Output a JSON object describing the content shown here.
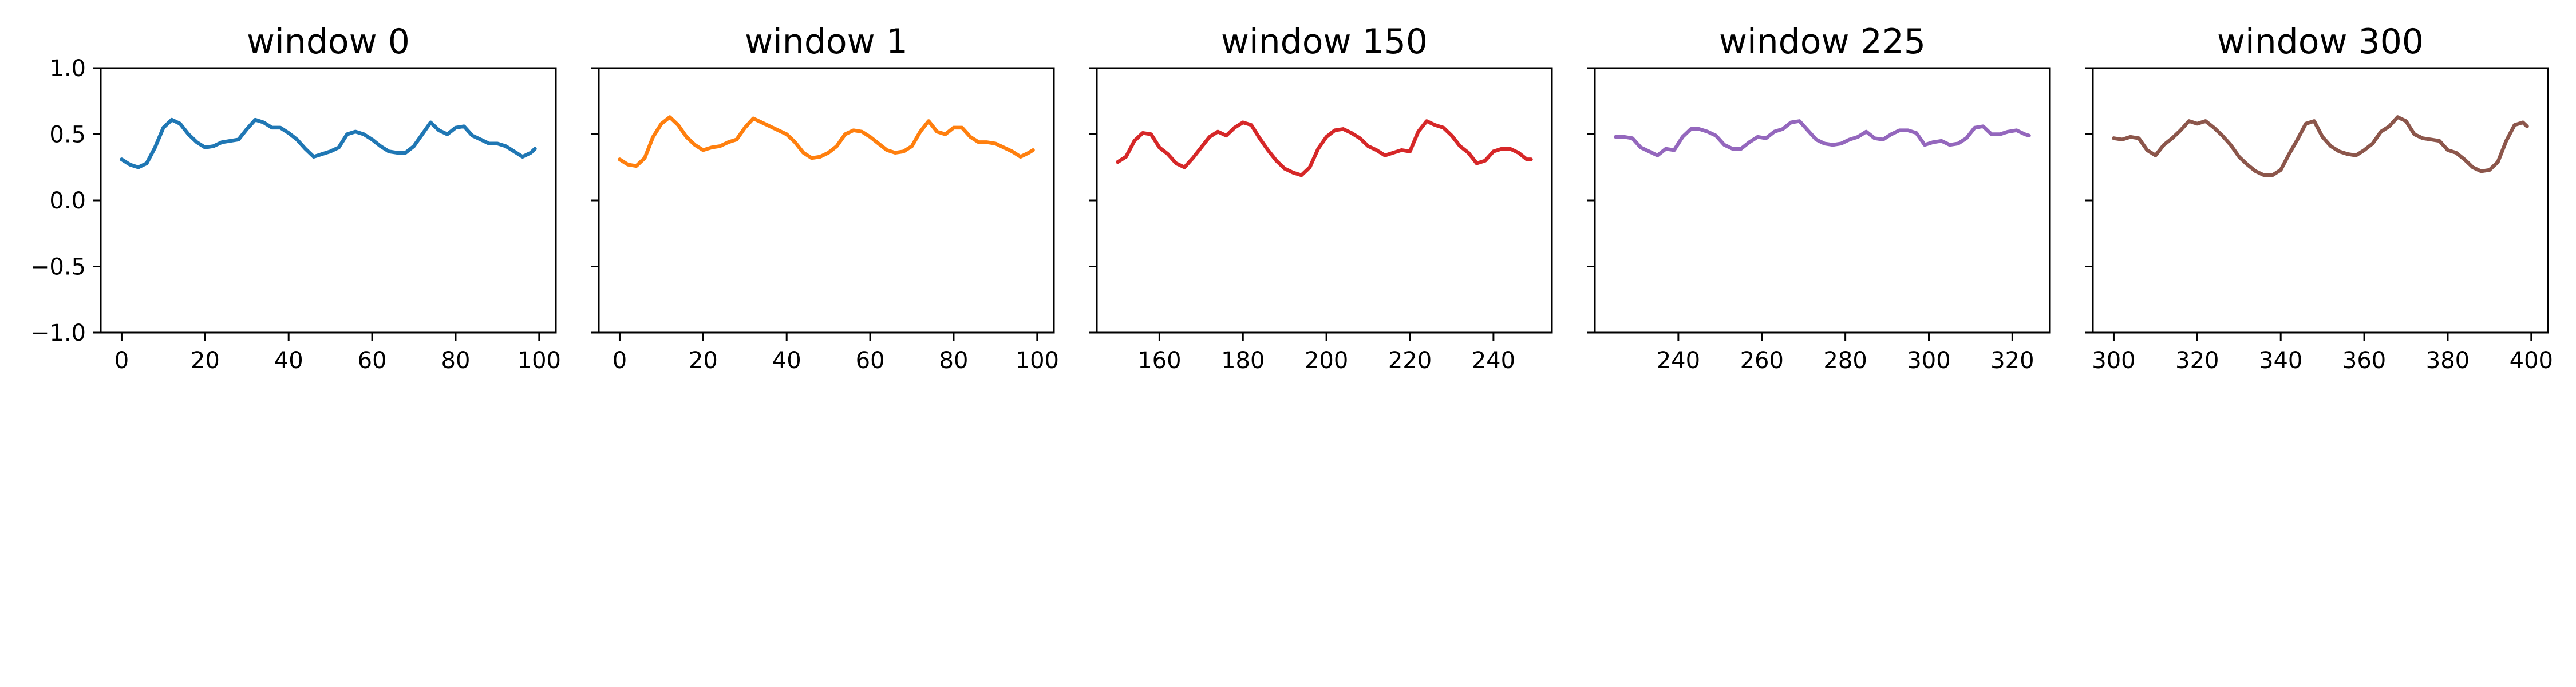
{
  "figure": {
    "background": "#ffffff",
    "tick_color": "#000000"
  },
  "chart_data": [
    {
      "type": "line",
      "title": "window 0",
      "color": "#1f77b4",
      "xlim": [
        -5,
        104
      ],
      "ylim": [
        -1.0,
        1.0
      ],
      "xticks": [
        0,
        20,
        40,
        60,
        80,
        100
      ],
      "yticks": [
        -1.0,
        -0.5,
        0.0,
        0.5,
        1.0
      ],
      "ytick_labels": [
        "−1.0",
        "−0.5",
        "0.0",
        "0.5",
        "1.0"
      ],
      "show_ytick_labels": true,
      "series": [
        {
          "x": [
            0,
            2,
            4,
            6,
            8,
            10,
            12,
            14,
            16,
            18,
            20,
            22,
            24,
            26,
            28,
            30,
            32,
            34,
            36,
            38,
            40,
            42,
            44,
            46,
            48,
            50,
            52,
            54,
            56,
            58,
            60,
            62,
            64,
            66,
            68,
            70,
            72,
            74,
            76,
            78,
            80,
            82,
            84,
            86,
            88,
            90,
            92,
            94,
            96,
            98,
            99
          ],
          "values": [
            0.31,
            0.27,
            0.25,
            0.28,
            0.4,
            0.55,
            0.61,
            0.58,
            0.5,
            0.44,
            0.4,
            0.41,
            0.44,
            0.45,
            0.46,
            0.54,
            0.61,
            0.59,
            0.55,
            0.55,
            0.51,
            0.46,
            0.39,
            0.33,
            0.35,
            0.37,
            0.4,
            0.5,
            0.52,
            0.5,
            0.46,
            0.41,
            0.37,
            0.36,
            0.36,
            0.41,
            0.5,
            0.59,
            0.53,
            0.5,
            0.55,
            0.56,
            0.49,
            0.46,
            0.43,
            0.43,
            0.41,
            0.37,
            0.33,
            0.36,
            0.39
          ]
        }
      ]
    },
    {
      "type": "line",
      "title": "window 1",
      "color": "#ff7f0e",
      "xlim": [
        -5,
        104
      ],
      "ylim": [
        -1.0,
        1.0
      ],
      "xticks": [
        0,
        20,
        40,
        60,
        80,
        100
      ],
      "yticks": [
        -1.0,
        -0.5,
        0.0,
        0.5,
        1.0
      ],
      "ytick_labels": [
        "−1.0",
        "−0.5",
        "0.0",
        "0.5",
        "1.0"
      ],
      "show_ytick_labels": false,
      "series": [
        {
          "x": [
            0,
            2,
            4,
            6,
            8,
            10,
            12,
            14,
            16,
            18,
            20,
            22,
            24,
            26,
            28,
            30,
            32,
            34,
            36,
            38,
            40,
            42,
            44,
            46,
            48,
            50,
            52,
            54,
            56,
            58,
            60,
            62,
            64,
            66,
            68,
            70,
            72,
            74,
            76,
            78,
            80,
            82,
            84,
            86,
            88,
            90,
            92,
            94,
            96,
            98,
            99
          ],
          "values": [
            0.31,
            0.27,
            0.26,
            0.32,
            0.48,
            0.58,
            0.63,
            0.57,
            0.48,
            0.42,
            0.38,
            0.4,
            0.41,
            0.44,
            0.46,
            0.55,
            0.62,
            0.59,
            0.56,
            0.53,
            0.5,
            0.44,
            0.36,
            0.32,
            0.33,
            0.36,
            0.41,
            0.5,
            0.53,
            0.52,
            0.48,
            0.43,
            0.38,
            0.36,
            0.37,
            0.41,
            0.52,
            0.6,
            0.52,
            0.5,
            0.55,
            0.55,
            0.48,
            0.44,
            0.44,
            0.43,
            0.4,
            0.37,
            0.33,
            0.36,
            0.38
          ]
        }
      ]
    },
    {
      "type": "line",
      "title": "window 150",
      "color": "#d62728",
      "xlim": [
        145,
        254
      ],
      "ylim": [
        -1.0,
        1.0
      ],
      "xticks": [
        160,
        180,
        200,
        220,
        240
      ],
      "yticks": [
        -1.0,
        -0.5,
        0.0,
        0.5,
        1.0
      ],
      "ytick_labels": [
        "−1.0",
        "−0.5",
        "0.0",
        "0.5",
        "1.0"
      ],
      "show_ytick_labels": false,
      "series": [
        {
          "x": [
            150,
            152,
            154,
            156,
            158,
            160,
            162,
            164,
            166,
            168,
            170,
            172,
            174,
            176,
            178,
            180,
            182,
            184,
            186,
            188,
            190,
            192,
            194,
            196,
            198,
            200,
            202,
            204,
            206,
            208,
            210,
            212,
            214,
            216,
            218,
            220,
            222,
            224,
            226,
            228,
            230,
            232,
            234,
            236,
            238,
            240,
            242,
            244,
            246,
            248,
            249
          ],
          "values": [
            0.29,
            0.33,
            0.45,
            0.51,
            0.5,
            0.4,
            0.35,
            0.28,
            0.25,
            0.32,
            0.4,
            0.48,
            0.52,
            0.49,
            0.55,
            0.59,
            0.57,
            0.47,
            0.38,
            0.3,
            0.24,
            0.21,
            0.19,
            0.25,
            0.39,
            0.48,
            0.53,
            0.54,
            0.51,
            0.47,
            0.41,
            0.38,
            0.34,
            0.36,
            0.38,
            0.37,
            0.52,
            0.6,
            0.57,
            0.55,
            0.49,
            0.41,
            0.36,
            0.28,
            0.3,
            0.37,
            0.39,
            0.39,
            0.36,
            0.31,
            0.31
          ]
        }
      ]
    },
    {
      "type": "line",
      "title": "window 225",
      "color": "#9467bd",
      "xlim": [
        220,
        329
      ],
      "ylim": [
        -1.0,
        1.0
      ],
      "xticks": [
        240,
        260,
        280,
        300,
        320
      ],
      "yticks": [
        -1.0,
        -0.5,
        0.0,
        0.5,
        1.0
      ],
      "ytick_labels": [
        "−1.0",
        "−0.5",
        "0.0",
        "0.5",
        "1.0"
      ],
      "show_ytick_labels": false,
      "series": [
        {
          "x": [
            225,
            227,
            229,
            231,
            233,
            235,
            237,
            239,
            241,
            243,
            245,
            247,
            249,
            251,
            253,
            255,
            257,
            259,
            261,
            263,
            265,
            267,
            269,
            271,
            273,
            275,
            277,
            279,
            281,
            283,
            285,
            287,
            289,
            291,
            293,
            295,
            297,
            299,
            301,
            303,
            305,
            307,
            309,
            311,
            313,
            315,
            317,
            319,
            321,
            323,
            324
          ],
          "values": [
            0.48,
            0.48,
            0.47,
            0.4,
            0.37,
            0.34,
            0.39,
            0.38,
            0.48,
            0.54,
            0.54,
            0.52,
            0.49,
            0.42,
            0.39,
            0.39,
            0.44,
            0.48,
            0.47,
            0.52,
            0.54,
            0.59,
            0.6,
            0.53,
            0.46,
            0.43,
            0.42,
            0.43,
            0.46,
            0.48,
            0.52,
            0.47,
            0.46,
            0.5,
            0.53,
            0.53,
            0.51,
            0.42,
            0.44,
            0.45,
            0.42,
            0.43,
            0.47,
            0.55,
            0.56,
            0.5,
            0.5,
            0.52,
            0.53,
            0.5,
            0.49
          ]
        }
      ]
    },
    {
      "type": "line",
      "title": "window 300",
      "color": "#8c564b",
      "xlim": [
        295,
        404
      ],
      "ylim": [
        -1.0,
        1.0
      ],
      "xticks": [
        300,
        320,
        340,
        360,
        380,
        400
      ],
      "yticks": [
        -1.0,
        -0.5,
        0.0,
        0.5,
        1.0
      ],
      "ytick_labels": [
        "−1.0",
        "−0.5",
        "0.0",
        "0.5",
        "1.0"
      ],
      "show_ytick_labels": false,
      "series": [
        {
          "x": [
            300,
            302,
            304,
            306,
            308,
            310,
            312,
            314,
            316,
            318,
            320,
            322,
            324,
            326,
            328,
            330,
            332,
            334,
            336,
            338,
            340,
            342,
            344,
            346,
            348,
            350,
            352,
            354,
            356,
            358,
            360,
            362,
            364,
            366,
            368,
            370,
            372,
            374,
            376,
            378,
            380,
            382,
            384,
            386,
            388,
            390,
            392,
            394,
            396,
            398,
            399
          ],
          "values": [
            0.47,
            0.46,
            0.48,
            0.47,
            0.38,
            0.34,
            0.42,
            0.47,
            0.53,
            0.6,
            0.58,
            0.6,
            0.55,
            0.49,
            0.42,
            0.33,
            0.27,
            0.22,
            0.19,
            0.19,
            0.23,
            0.35,
            0.46,
            0.58,
            0.6,
            0.48,
            0.41,
            0.37,
            0.35,
            0.34,
            0.38,
            0.43,
            0.52,
            0.56,
            0.63,
            0.6,
            0.5,
            0.47,
            0.46,
            0.45,
            0.38,
            0.36,
            0.31,
            0.25,
            0.22,
            0.23,
            0.29,
            0.45,
            0.57,
            0.59,
            0.56
          ]
        }
      ]
    }
  ]
}
